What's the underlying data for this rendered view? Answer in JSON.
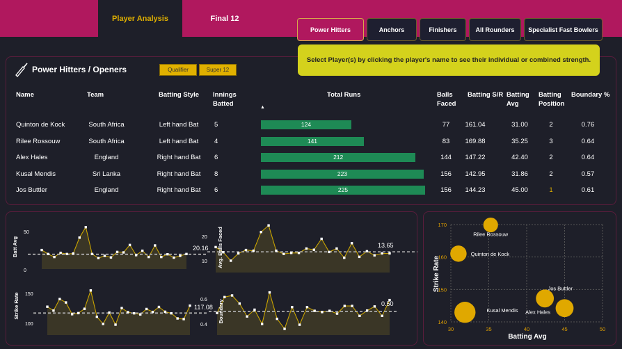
{
  "tabs": [
    {
      "label": "Player Analysis",
      "active": true
    },
    {
      "label": "Final 12",
      "active": false
    }
  ],
  "categories": [
    {
      "label": "Power Hitters",
      "active": true
    },
    {
      "label": "Anchors"
    },
    {
      "label": "Finishers"
    },
    {
      "label": "All Rounders"
    },
    {
      "label": "Specialist Fast Bowlers"
    }
  ],
  "note": "Select Player(s) by clicking the player's name to see their individual or combined strength.",
  "panel": {
    "title": "Power Hitters / Openers",
    "icon": "cricket-bat-icon",
    "filters": [
      "Qualifier",
      "Super 12"
    ]
  },
  "table": {
    "headers": [
      "Name",
      "Team",
      "Batting Style",
      "Innings Batted",
      "Total Runs",
      "Balls Faced",
      "Batting S/R",
      "Batting Avg",
      "Batting Position",
      "Boundary %"
    ],
    "sort_indicator": "▲",
    "rows": [
      [
        "Quinton de Kock",
        "South Africa",
        "Left hand Bat",
        "5",
        "124",
        "77",
        "161.04",
        "31.00",
        "2",
        "0.76"
      ],
      [
        "Rilee Rossouw",
        "South Africa",
        "Left hand Bat",
        "4",
        "141",
        "83",
        "169.88",
        "35.25",
        "3",
        "0.64"
      ],
      [
        "Alex Hales",
        "England",
        "Right hand Bat",
        "6",
        "212",
        "144",
        "147.22",
        "42.40",
        "2",
        "0.64"
      ],
      [
        "Kusal Mendis",
        "Sri Lanka",
        "Right hand Bat",
        "8",
        "223",
        "156",
        "142.95",
        "31.86",
        "2",
        "0.57"
      ],
      [
        "Jos Buttler",
        "England",
        "Right hand Bat",
        "6",
        "225",
        "156",
        "144.23",
        "45.00",
        "1",
        "0.61"
      ]
    ]
  },
  "colors": {
    "accent": "#b0185e",
    "gold": "#e0b000",
    "bar": "#1e8a55",
    "note": "#d4d21c"
  },
  "sparklines": [
    {
      "ylabel": "Batt Avg",
      "ticks": [
        "50",
        "0"
      ],
      "avg": "20.16",
      "avg_value": 20.16,
      "values": [
        25.8,
        20.6,
        16.7,
        22.1,
        20.6,
        21.2,
        42,
        55.7,
        20.6,
        15.2,
        18.2,
        16.1,
        23.3,
        22.7,
        32.4,
        19.1,
        24.8,
        16.7,
        31.8,
        16.7,
        20.3,
        15.8,
        18.2,
        20.6
      ]
    },
    {
      "ylabel": "Avg. Balls Faced",
      "ticks": [
        "20",
        "10"
      ],
      "avg": "13.65",
      "avg_value": 13.65,
      "values": [
        15.6,
        13.5,
        10,
        13,
        14.4,
        14.1,
        21.8,
        24.5,
        14.1,
        12.8,
        13.2,
        13.2,
        15,
        14.5,
        19,
        13.6,
        15,
        11.2,
        17.2,
        11.6,
        13.9,
        12.2,
        13,
        13
      ]
    },
    {
      "ylabel": "Strike Rate",
      "ticks": [
        "150",
        "100"
      ],
      "avg": "117.08",
      "avg_value": 117.08,
      "values": [
        127.7,
        121.2,
        140.5,
        134.8,
        115.2,
        117,
        124.2,
        154.9,
        110.9,
        98.9,
        117.8,
        97.7,
        125.4,
        118.6,
        116.7,
        114.8,
        123.9,
        119,
        127.3,
        119.3,
        116.7,
        108.1,
        107,
        129.5
      ]
    },
    {
      "ylabel": "Boundary",
      "ticks": [
        "0.6",
        "0.4"
      ],
      "avg": "0.50",
      "avg_value": 0.5,
      "values": [
        0.488,
        0.615,
        0.628,
        0.563,
        0.46,
        0.514,
        0.4,
        0.652,
        0.441,
        0.361,
        0.535,
        0.394,
        0.535,
        0.505,
        0.495,
        0.505,
        0.483,
        0.544,
        0.544,
        0.465,
        0.507,
        0.54,
        0.465,
        0.591
      ]
    }
  ],
  "chart_data": {
    "type": "scatter",
    "xlabel": "Batting Avg",
    "ylabel": "Strike Rate",
    "xlim": [
      30,
      50
    ],
    "ylim": [
      140,
      170
    ],
    "xticks": [
      "30",
      "35",
      "40",
      "45",
      "50"
    ],
    "yticks": [
      "140",
      "150",
      "160",
      "170"
    ],
    "grid": true,
    "points": [
      {
        "label": "Quinton de Kock",
        "x": 31.0,
        "y": 161.04,
        "size": 5
      },
      {
        "label": "Rilee Rossouw",
        "x": 35.25,
        "y": 169.88,
        "size": 4
      },
      {
        "label": "Alex Hales",
        "x": 42.4,
        "y": 147.22,
        "size": 6
      },
      {
        "label": "Kusal Mendis",
        "x": 31.86,
        "y": 142.95,
        "size": 8
      },
      {
        "label": "Jos Buttler",
        "x": 45.0,
        "y": 144.23,
        "size": 6
      }
    ]
  }
}
